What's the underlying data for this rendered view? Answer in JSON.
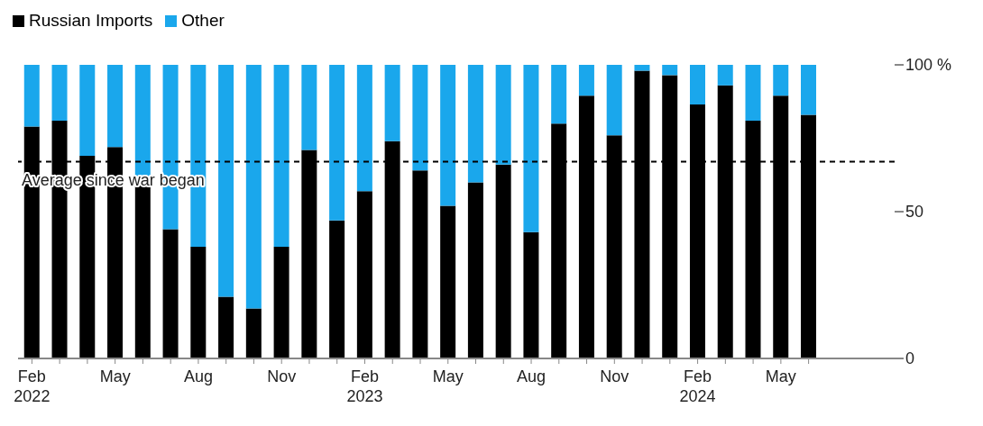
{
  "chart_data": {
    "type": "bar",
    "stacked": true,
    "legend": "top left",
    "categories": [
      "Feb\n2022",
      null,
      null,
      "May",
      null,
      null,
      "Aug",
      null,
      null,
      "Nov",
      null,
      null,
      "Feb\n2023",
      null,
      null,
      "May",
      null,
      null,
      "Aug",
      null,
      null,
      "Nov",
      null,
      null,
      "Feb\n2024",
      null,
      null,
      "May",
      null
    ],
    "series": [
      {
        "name": "Russian Imports",
        "color": "#000000",
        "values": [
          79,
          81,
          69,
          72,
          60,
          44,
          38,
          21,
          17,
          38,
          71,
          47,
          57,
          74,
          64,
          52,
          60,
          66,
          43,
          80,
          89.5,
          76,
          98,
          96.5,
          86.5,
          93,
          81,
          89.5,
          83
        ]
      },
      {
        "name": "Other",
        "color": "#1aa7ec",
        "values": [
          21,
          19,
          31,
          28,
          40,
          56,
          62,
          79,
          83,
          62,
          29,
          53,
          43,
          26,
          36,
          48,
          40,
          34,
          57,
          20,
          10.5,
          24,
          2,
          3.5,
          13.5,
          7,
          19,
          10.5,
          17
        ]
      }
    ],
    "ylim": [
      0,
      100
    ],
    "yticks": [
      {
        "value": 0,
        "label": "0"
      },
      {
        "value": 50,
        "label": "50"
      },
      {
        "value": 100,
        "label": "100 %"
      }
    ],
    "ref_lines": [
      {
        "axis": "y",
        "value": 67,
        "label": "Average since war began",
        "color": "#000000",
        "line_style": "dashed"
      }
    ]
  }
}
